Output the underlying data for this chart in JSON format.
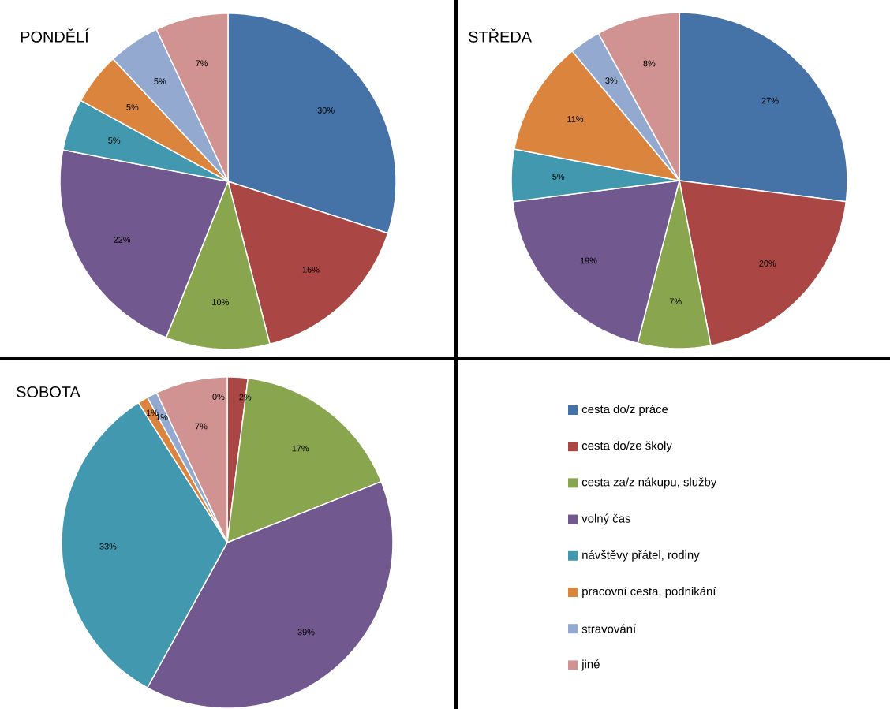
{
  "chart_data": [
    {
      "type": "pie",
      "title": "PONDĚLÍ",
      "values": [
        30,
        16,
        10,
        22,
        5,
        5,
        5,
        7
      ],
      "value_labels": [
        "30%",
        "16%",
        "10%",
        "22%",
        "5%",
        "5%",
        "5%",
        "7%"
      ],
      "colors": [
        "#4572a7",
        "#aa4643",
        "#89a54e",
        "#71588f",
        "#4198af",
        "#db843d",
        "#93a9cf",
        "#d19392"
      ]
    },
    {
      "type": "pie",
      "title": "STŘEDA",
      "values": [
        27,
        20,
        7,
        19,
        5,
        11,
        3,
        8
      ],
      "value_labels": [
        "27%",
        "20%",
        "7%",
        "19%",
        "5%",
        "11%",
        "3%",
        "8%"
      ],
      "colors": [
        "#4572a7",
        "#aa4643",
        "#89a54e",
        "#71588f",
        "#4198af",
        "#db843d",
        "#93a9cf",
        "#d19392"
      ]
    },
    {
      "type": "pie",
      "title": "SOBOTA",
      "categories": [
        "cesta do/z práce",
        "cesta do/ze školy",
        "cesta za/z nákupu, služby",
        "volný čas",
        "návštěvy přátel, rodiny",
        "pracovní cesta, podnikání",
        "stravování",
        "jiné"
      ],
      "values": [
        0,
        2,
        17,
        39,
        33,
        1,
        1,
        7
      ],
      "value_labels": [
        "0%",
        "2%",
        "17%",
        "39%",
        "33%",
        "1%",
        "1%",
        "7%"
      ],
      "colors": [
        "#4572a7",
        "#aa4643",
        "#89a54e",
        "#71588f",
        "#4198af",
        "#db843d",
        "#93a9cf",
        "#d19392"
      ],
      "legend": "right"
    }
  ]
}
